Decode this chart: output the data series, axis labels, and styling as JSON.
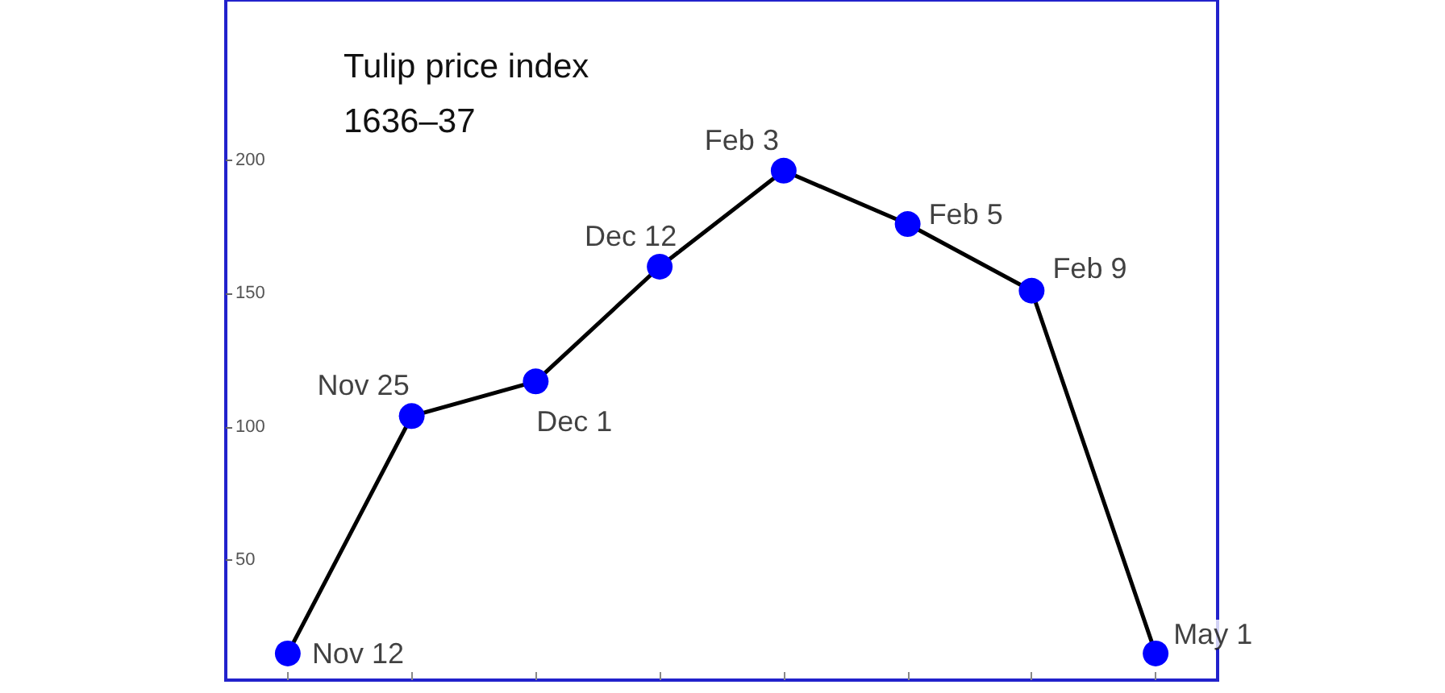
{
  "chart_data": {
    "type": "line",
    "title": "Tulip price index",
    "subtitle": "1636–37",
    "categories": [
      null,
      null,
      null,
      null,
      null,
      null,
      null,
      null
    ],
    "series": [
      {
        "color": "#000000",
        "marker": "circle",
        "line_style": "solid",
        "values": [
          15,
          104,
          117,
          160,
          196,
          176,
          151,
          15
        ],
        "colors": [
          "#0000ff",
          "#0000ff",
          "#0000ff",
          "#0000ff",
          "#0000ff",
          "#0000ff",
          "#0000ff",
          "#0000ff"
        ]
      }
    ],
    "annotations": [
      "Nov 12",
      "Nov 25",
      "Dec 1",
      "Dec 12",
      "Feb 3",
      "Feb 5",
      "Feb 9",
      "May 1"
    ],
    "ylim": [
      5,
      260
    ],
    "yticks": [
      50,
      100,
      150,
      200
    ],
    "tick_labels": "y",
    "grid": false
  }
}
